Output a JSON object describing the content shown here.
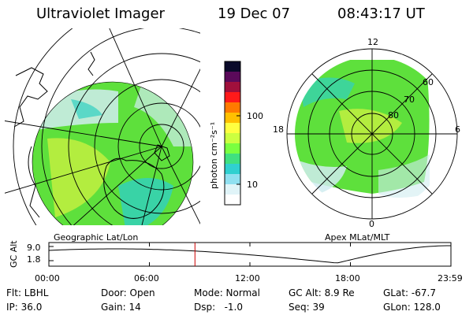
{
  "header": {
    "instrument": "Ultraviolet Imager",
    "date": "19 Dec 07",
    "time": "08:43:17 UT"
  },
  "left_panel": {
    "caption": "Geographic Lat/Lon"
  },
  "right_panel": {
    "caption": "Apex MLat/MLT",
    "mlt_labels": [
      "12",
      "18",
      "6",
      "0"
    ],
    "mlat_labels": [
      "60",
      "70",
      "80"
    ]
  },
  "colorbar": {
    "unit_label": "photon cm⁻²s⁻¹",
    "tick_labels": [
      "100",
      "10"
    ],
    "colors": [
      "#0a0a2a",
      "#5a0a5a",
      "#a0103c",
      "#ff1a1a",
      "#ff7a00",
      "#ffc000",
      "#ffff40",
      "#ccff40",
      "#7aff40",
      "#40e080",
      "#30d0d0",
      "#90e0f0",
      "#e0f4f8",
      "#ffffff"
    ]
  },
  "altitude_plot": {
    "ylabel": "GC Alt",
    "ytick_labels": [
      "9.0",
      "1.8"
    ],
    "xtick_labels": [
      "00:00",
      "06:00",
      "12:00",
      "18:00",
      "23:59"
    ],
    "marker_time_hours": 8.72,
    "marker_color": "#cc0000"
  },
  "info": {
    "row1": [
      "Flt: LBHL",
      "Door: Open",
      "Mode: Normal",
      "GC Alt: 8.9 Re",
      "GLat: -67.7"
    ],
    "row2": [
      "IP: 36.0",
      "Gain: 14",
      "Dsp:   -1.0",
      "Seq: 39",
      "GLon: 128.0"
    ]
  },
  "palette": {
    "aurora_green": "#5ee03c",
    "aurora_yellow": "#c8f040",
    "aurora_cyan": "#30d0c0",
    "aurora_pale": "#d0ecf0"
  }
}
